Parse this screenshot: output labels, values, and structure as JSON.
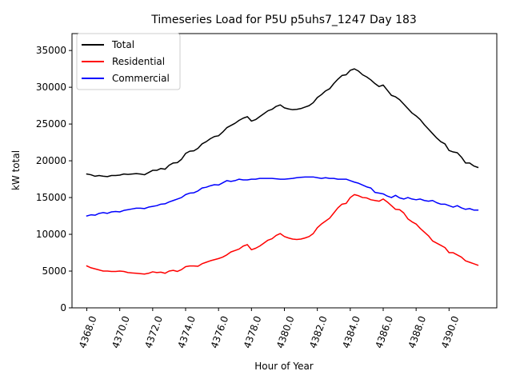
{
  "chart_data": {
    "type": "line",
    "title": "Timeseries Load for P5U p5uhs7_1247  Day 183",
    "xlabel": "Hour of Year",
    "ylabel": "kW total",
    "xlim": [
      4367.1,
      4392.9
    ],
    "ylim": [
      0,
      37300
    ],
    "x_ticks": [
      4368,
      4370,
      4372,
      4374,
      4376,
      4378,
      4380,
      4382,
      4384,
      4386,
      4388,
      4390
    ],
    "x_tick_labels": [
      "4368.0",
      "4370.0",
      "4372.0",
      "4374.0",
      "4376.0",
      "4378.0",
      "4380.0",
      "4382.0",
      "4384.0",
      "4386.0",
      "4388.0",
      "4390.0"
    ],
    "y_ticks": [
      0,
      5000,
      10000,
      15000,
      20000,
      25000,
      30000,
      35000
    ],
    "y_tick_labels": [
      "0",
      "5000",
      "10000",
      "15000",
      "20000",
      "25000",
      "30000",
      "35000"
    ],
    "grid": false,
    "legend_position": "top-left",
    "x": [
      4368.0,
      4368.25,
      4368.5,
      4368.75,
      4369.0,
      4369.25,
      4369.5,
      4369.75,
      4370.0,
      4370.25,
      4370.5,
      4370.75,
      4371.0,
      4371.25,
      4371.5,
      4371.75,
      4372.0,
      4372.25,
      4372.5,
      4372.75,
      4373.0,
      4373.25,
      4373.5,
      4373.75,
      4374.0,
      4374.25,
      4374.5,
      4374.75,
      4375.0,
      4375.25,
      4375.5,
      4375.75,
      4376.0,
      4376.25,
      4376.5,
      4376.75,
      4377.0,
      4377.25,
      4377.5,
      4377.75,
      4378.0,
      4378.25,
      4378.5,
      4378.75,
      4379.0,
      4379.25,
      4379.5,
      4379.75,
      4380.0,
      4380.25,
      4380.5,
      4380.75,
      4381.0,
      4381.25,
      4381.5,
      4381.75,
      4382.0,
      4382.25,
      4382.5,
      4382.75,
      4383.0,
      4383.25,
      4383.5,
      4383.75,
      4384.0,
      4384.25,
      4384.5,
      4384.75,
      4385.0,
      4385.25,
      4385.5,
      4385.75,
      4386.0,
      4386.25,
      4386.5,
      4386.75,
      4387.0,
      4387.25,
      4387.5,
      4387.75,
      4388.0,
      4388.25,
      4388.5,
      4388.75,
      4389.0,
      4389.25,
      4389.5,
      4389.75,
      4390.0,
      4390.25,
      4390.5,
      4390.75,
      4391.0,
      4391.25,
      4391.5,
      4391.75
    ],
    "series": [
      {
        "name": "Total",
        "color": "#000000",
        "values": [
          18200,
          18100,
          17900,
          18000,
          17900,
          17850,
          18000,
          18000,
          18050,
          18200,
          18150,
          18200,
          18250,
          18200,
          18100,
          18400,
          18700,
          18700,
          18950,
          18850,
          19400,
          19700,
          19750,
          20200,
          21000,
          21300,
          21350,
          21700,
          22300,
          22600,
          23000,
          23300,
          23400,
          23900,
          24500,
          24800,
          25100,
          25500,
          25800,
          26000,
          25400,
          25600,
          26000,
          26400,
          26800,
          27000,
          27400,
          27600,
          27200,
          27050,
          26950,
          27000,
          27100,
          27300,
          27500,
          27900,
          28600,
          29000,
          29500,
          29800,
          30500,
          31100,
          31600,
          31700,
          32300,
          32500,
          32200,
          31700,
          31400,
          31000,
          30500,
          30100,
          30300,
          29600,
          28900,
          28700,
          28300,
          27700,
          27100,
          26500,
          26100,
          25600,
          24900,
          24300,
          23700,
          23100,
          22600,
          22300,
          21400,
          21200,
          21100,
          20500,
          19700,
          19700,
          19300,
          19100
        ]
      },
      {
        "name": "Residential",
        "color": "#ff0000",
        "values": [
          5700,
          5450,
          5300,
          5150,
          5000,
          5000,
          4950,
          4950,
          5000,
          4950,
          4800,
          4750,
          4700,
          4650,
          4600,
          4700,
          4900,
          4800,
          4850,
          4700,
          5000,
          5100,
          4950,
          5200,
          5600,
          5700,
          5700,
          5650,
          6000,
          6200,
          6400,
          6550,
          6700,
          6900,
          7200,
          7600,
          7800,
          8000,
          8400,
          8600,
          7900,
          8100,
          8400,
          8800,
          9200,
          9400,
          9850,
          10100,
          9700,
          9500,
          9350,
          9300,
          9350,
          9500,
          9700,
          10100,
          10900,
          11400,
          11800,
          12200,
          12900,
          13600,
          14100,
          14200,
          15000,
          15400,
          15250,
          15000,
          14950,
          14700,
          14600,
          14500,
          14800,
          14400,
          13900,
          13400,
          13350,
          12900,
          12100,
          11700,
          11400,
          10800,
          10300,
          9800,
          9100,
          8800,
          8500,
          8200,
          7500,
          7500,
          7200,
          6900,
          6400,
          6200,
          6000,
          5800
        ]
      },
      {
        "name": "Commercial",
        "color": "#0000ff",
        "values": [
          12500,
          12650,
          12600,
          12850,
          12950,
          12850,
          13050,
          13100,
          13050,
          13250,
          13350,
          13450,
          13550,
          13550,
          13500,
          13700,
          13800,
          13900,
          14100,
          14150,
          14400,
          14600,
          14800,
          15000,
          15400,
          15600,
          15650,
          15900,
          16300,
          16400,
          16600,
          16750,
          16700,
          17000,
          17300,
          17200,
          17300,
          17500,
          17400,
          17400,
          17500,
          17500,
          17600,
          17600,
          17600,
          17600,
          17550,
          17500,
          17500,
          17550,
          17600,
          17700,
          17750,
          17800,
          17800,
          17800,
          17700,
          17600,
          17700,
          17600,
          17600,
          17500,
          17500,
          17500,
          17300,
          17100,
          16950,
          16700,
          16450,
          16300,
          15700,
          15600,
          15500,
          15200,
          15000,
          15300,
          14950,
          14800,
          15000,
          14800,
          14700,
          14800,
          14600,
          14500,
          14600,
          14300,
          14100,
          14100,
          13900,
          13700,
          13900,
          13600,
          13400,
          13500,
          13300,
          13300
        ]
      }
    ]
  }
}
